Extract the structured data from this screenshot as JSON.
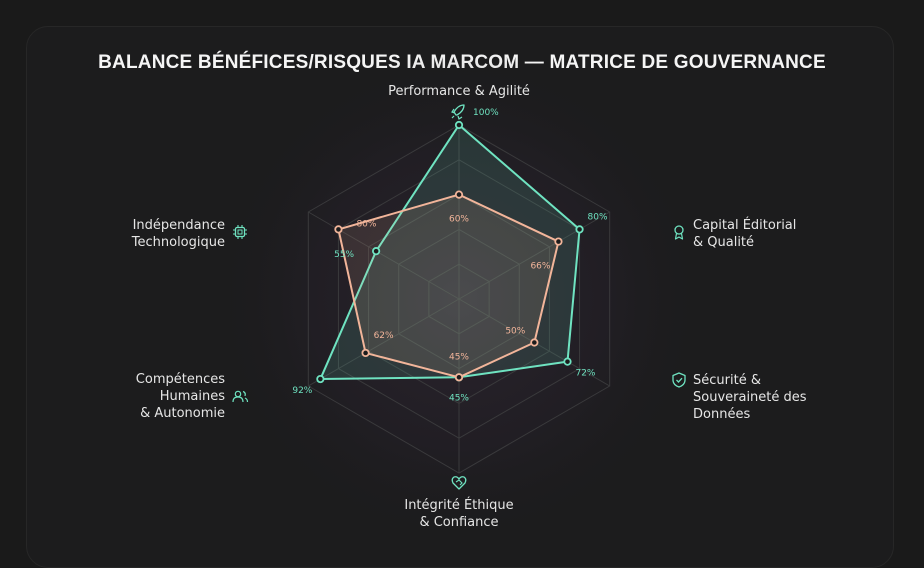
{
  "chart_data": {
    "type": "radar",
    "title": "BALANCE BÉNÉFICES/RISQUES IA MARCOM — MATRICE DE GOUVERNANCE",
    "axes": [
      {
        "label_lines": [
          "Performance & Agilité"
        ],
        "icon": "rocket-icon"
      },
      {
        "label_lines": [
          "Capital Éditorial",
          "& Qualité"
        ],
        "icon": "award-icon"
      },
      {
        "label_lines": [
          "Sécurité &",
          "Souveraineté des",
          "Données"
        ],
        "icon": "shield-check-icon"
      },
      {
        "label_lines": [
          "Intégrité Éthique",
          "& Confiance"
        ],
        "icon": "handshake-heart-icon"
      },
      {
        "label_lines": [
          "Compétences",
          "Humaines",
          "& Autonomie"
        ],
        "icon": "users-icon"
      },
      {
        "label_lines": [
          "Indépendance",
          "Technologique"
        ],
        "icon": "chip-icon"
      }
    ],
    "range": [
      0,
      100
    ],
    "grid_levels": 5,
    "series": [
      {
        "values": [
          100,
          80,
          72,
          45,
          92,
          55
        ],
        "labels": [
          "100%",
          "80%",
          "72%",
          "45%",
          "92%",
          "55%"
        ],
        "color": "#6fe3c1"
      },
      {
        "values": [
          60,
          66,
          50,
          45,
          62,
          80
        ],
        "labels": [
          "60%",
          "66%",
          "50%",
          "45%",
          "62%",
          "80%"
        ],
        "color": "#f2b59a"
      }
    ],
    "colors": {
      "icon": "#6fe3c1",
      "grid": "#3a3a3c"
    }
  }
}
